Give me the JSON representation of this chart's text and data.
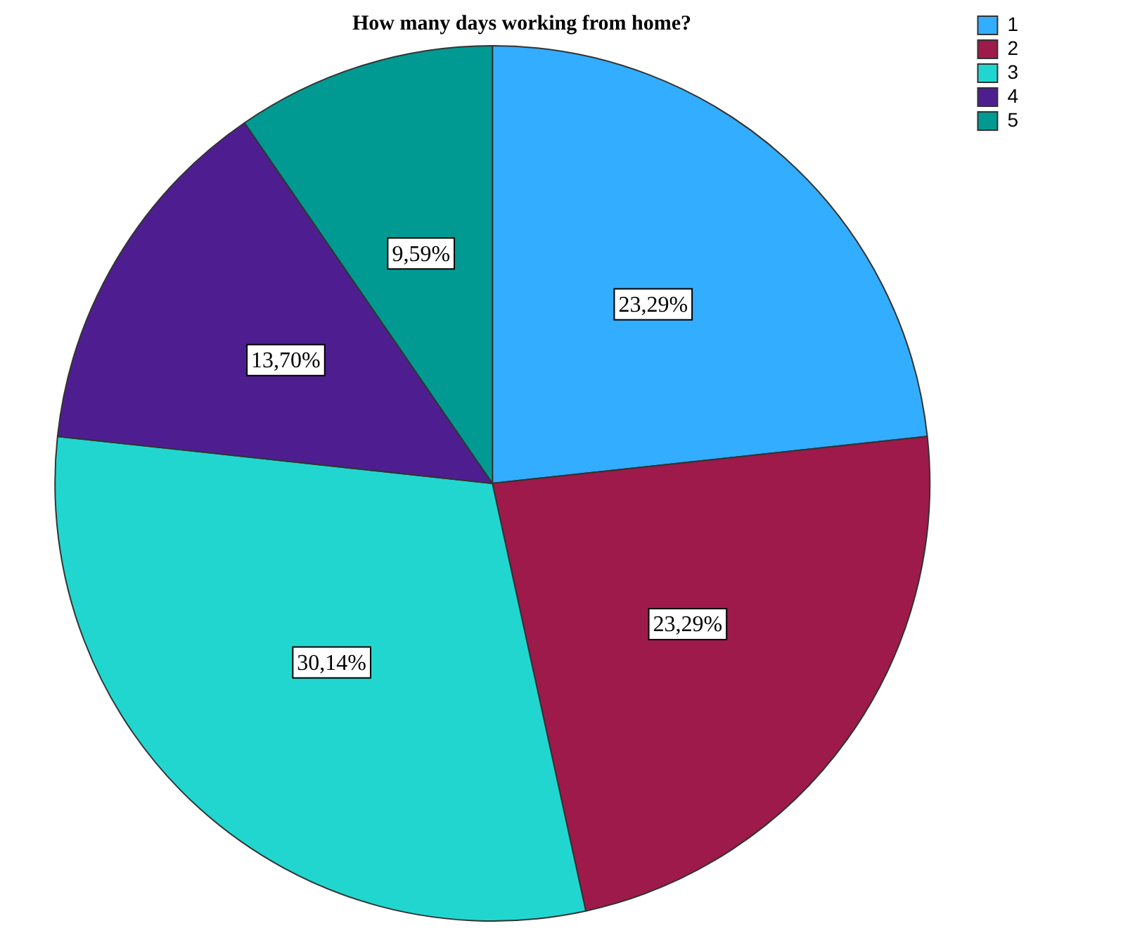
{
  "chart_data": {
    "type": "pie",
    "title": "How many days working from home?",
    "categories": [
      "1",
      "2",
      "3",
      "4",
      "5"
    ],
    "values": [
      23.29,
      23.29,
      30.14,
      13.7,
      9.59
    ],
    "colors": [
      "#33adff",
      "#9e1a4a",
      "#22d6d0",
      "#4e1e91",
      "#009a93"
    ],
    "value_labels": [
      "23,29%",
      "23,29%",
      "30,14%",
      "13,70%",
      "9,59%"
    ],
    "legend": "top right"
  }
}
